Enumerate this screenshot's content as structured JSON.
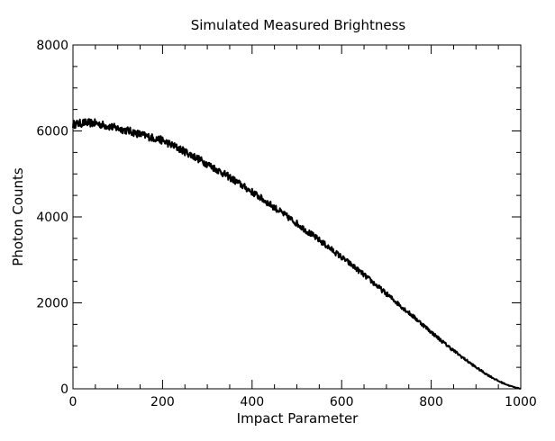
{
  "chart_data": {
    "type": "line",
    "title": "Simulated Measured Brightness",
    "xlabel": "Impact Parameter",
    "ylabel": "Photon Counts",
    "xlim": [
      0,
      1000
    ],
    "ylim": [
      0,
      8000
    ],
    "x_ticks": [
      0,
      200,
      400,
      600,
      800,
      1000
    ],
    "y_ticks": [
      0,
      2000,
      4000,
      6000,
      8000
    ],
    "x_tick_labels": [
      "0",
      "200",
      "400",
      "600",
      "800",
      "1000"
    ],
    "y_tick_labels": [
      "0",
      "2000",
      "4000",
      "6000",
      "8000"
    ],
    "grid": false,
    "line_color": "#000000",
    "series": [
      {
        "x": [
          0,
          25,
          50,
          75,
          100,
          125,
          150,
          175,
          200,
          225,
          250,
          275,
          300,
          325,
          350,
          375,
          400,
          425,
          450,
          475,
          500,
          525,
          550,
          575,
          600,
          625,
          650,
          675,
          700,
          725,
          750,
          775,
          800,
          825,
          850,
          875,
          900,
          925,
          950,
          975,
          1000
        ],
        "values": [
          6150,
          6190,
          6180,
          6120,
          6060,
          6000,
          5920,
          5850,
          5780,
          5650,
          5520,
          5380,
          5230,
          5080,
          4920,
          4750,
          4580,
          4400,
          4220,
          4030,
          3850,
          3650,
          3460,
          3260,
          3060,
          2860,
          2650,
          2430,
          2210,
          1990,
          1770,
          1550,
          1320,
          1100,
          890,
          690,
          500,
          330,
          180,
          70,
          0
        ]
      }
    ]
  }
}
